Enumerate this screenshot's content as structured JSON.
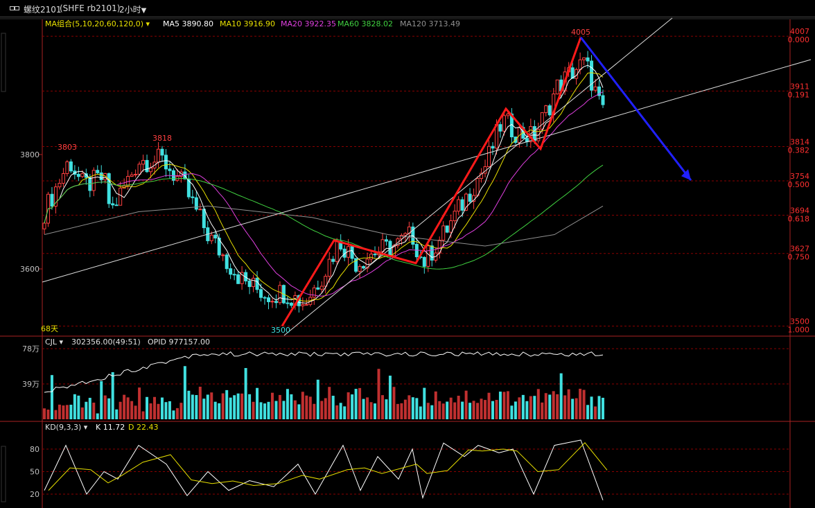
{
  "window": {
    "symbol_title": "螺纹2101",
    "contract": "(SHFE rb2101)",
    "period": "2小时"
  },
  "legend_ma": {
    "label": "MA组合(5,10,20,60,120,0)",
    "items": [
      {
        "text": "MA5 3890.80",
        "color": "#ffffff"
      },
      {
        "text": "MA10 3916.90",
        "color": "#e8e000"
      },
      {
        "text": "MA20 3922.35",
        "color": "#e040e0"
      },
      {
        "text": "MA60 3828.02",
        "color": "#40d040"
      },
      {
        "text": "MA120 3713.49",
        "color": "#909090"
      }
    ]
  },
  "legend_vol": {
    "label": "CJL",
    "value": "302356.00(49:51)",
    "opid": "OPID 977157.00"
  },
  "legend_kd": {
    "label": "KD(9,3,3)",
    "k": "K 11.72",
    "d": "D 22.43"
  },
  "bar_count_label": "68天",
  "colors": {
    "up": "#ff4040",
    "down": "#40e0e0",
    "grid": "#8b0000",
    "axis": "#aa2222",
    "wave": "#ff1a1a",
    "arrow": "#2020ff"
  },
  "chart_data": {
    "type": "candlestick",
    "price_axis": {
      "ticks": [
        3800,
        3600
      ],
      "ylim": [
        3480,
        4020
      ]
    },
    "extreme_labels": [
      {
        "text": "3803",
        "value": 3803
      },
      {
        "text": "3818",
        "value": 3818
      },
      {
        "text": "3500",
        "value": 3500
      },
      {
        "text": "4005",
        "value": 4005
      }
    ],
    "fibonacci_levels": [
      {
        "price": "4007",
        "ratio": "0.000",
        "value": 4007
      },
      {
        "price": "3911",
        "ratio": "0.191",
        "value": 3911
      },
      {
        "price": "3814",
        "ratio": "0.382",
        "value": 3814
      },
      {
        "price": "3754",
        "ratio": "0.500",
        "value": 3754
      },
      {
        "price": "3694",
        "ratio": "0.618",
        "value": 3694
      },
      {
        "price": "3627",
        "ratio": "0.750",
        "value": 3627
      },
      {
        "price": "3500",
        "ratio": "1.000",
        "value": 3500
      }
    ],
    "wave_pattern_prices": [
      3500,
      3650,
      3610,
      3880,
      3810,
      4005
    ],
    "forecast_arrow_target": 3755,
    "volume": {
      "ticks": [
        "78万",
        "39万"
      ],
      "tick_values": [
        780000,
        390000
      ],
      "ylim": [
        0,
        880000
      ]
    },
    "kd": {
      "ticks": [
        "80",
        "50",
        "20"
      ],
      "tick_values": [
        80,
        50,
        20
      ],
      "ylim": [
        5,
        100
      ]
    }
  }
}
